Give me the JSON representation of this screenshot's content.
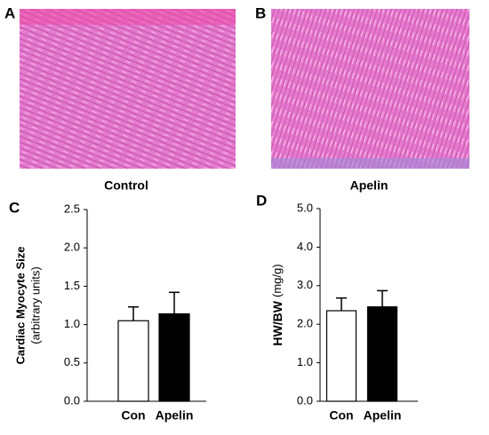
{
  "images": [
    {
      "letter": "A",
      "caption": "Control"
    },
    {
      "letter": "B",
      "caption": "Apelin"
    }
  ],
  "chart_data": [
    {
      "type": "bar",
      "panel": "C",
      "y_label": "Cardiac Myocyte Size",
      "y_label_sub": "(arbitrary units)",
      "categories": [
        "Con",
        "Apelin"
      ],
      "values": [
        1.05,
        1.14
      ],
      "errors": [
        0.18,
        0.28
      ],
      "colors": [
        "#ffffff",
        "#000000"
      ],
      "ylim": [
        0,
        2.5
      ],
      "yticks": [
        {
          "value": 0,
          "label": "0.0"
        },
        {
          "value": 0.5,
          "label": "0.5"
        },
        {
          "value": 1,
          "label": "1.0"
        },
        {
          "value": 1.5,
          "label": "1.5"
        },
        {
          "value": 2,
          "label": "2.0"
        },
        {
          "value": 2.5,
          "label": "2.5"
        }
      ]
    },
    {
      "type": "bar",
      "panel": "D",
      "y_label": "HW/BW",
      "y_label_sub": "(mg/g)",
      "categories": [
        "Con",
        "Apelin"
      ],
      "values": [
        2.35,
        2.45
      ],
      "errors": [
        0.33,
        0.42
      ],
      "colors": [
        "#ffffff",
        "#000000"
      ],
      "ylim": [
        0,
        5
      ],
      "yticks": [
        {
          "value": 0,
          "label": "0.0"
        },
        {
          "value": 1,
          "label": "1.0"
        },
        {
          "value": 2,
          "label": "2.0"
        },
        {
          "value": 3,
          "label": "3.0"
        },
        {
          "value": 4,
          "label": "4.0"
        },
        {
          "value": 5,
          "label": "5.0"
        }
      ]
    }
  ]
}
